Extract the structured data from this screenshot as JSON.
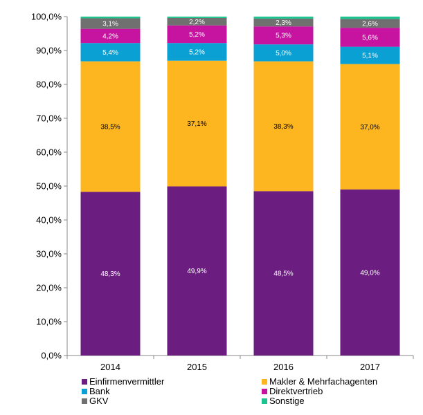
{
  "chart_data": {
    "type": "bar",
    "stacked": true,
    "categories": [
      "2014",
      "2015",
      "2016",
      "2017"
    ],
    "ylim": [
      0,
      100
    ],
    "yticks": [
      "0,0%",
      "10,0%",
      "20,0%",
      "30,0%",
      "40,0%",
      "50,0%",
      "60,0%",
      "70,0%",
      "80,0%",
      "90,0%",
      "100,0%"
    ],
    "legend_position": "bottom",
    "series": [
      {
        "name": "Einfirmenvermittler",
        "color": "#6b1e80",
        "label_color": "#ffffff",
        "values": [
          48.3,
          49.9,
          48.5,
          49.0
        ],
        "labels": [
          "48,3%",
          "49,9%",
          "48,5%",
          "49,0%"
        ]
      },
      {
        "name": "Makler & Mehrfachagenten",
        "color": "#fdb520",
        "label_color": "#000000",
        "values": [
          38.5,
          37.1,
          38.3,
          37.0
        ],
        "labels": [
          "38,5%",
          "37,1%",
          "38,3%",
          "37,0%"
        ]
      },
      {
        "name": "Bank",
        "color": "#0aa0d4",
        "label_color": "#ffffff",
        "values": [
          5.4,
          5.2,
          5.0,
          5.1
        ],
        "labels": [
          "5,4%",
          "5,2%",
          "5,0%",
          "5,1%"
        ]
      },
      {
        "name": "Direktvertrieb",
        "color": "#c613a0",
        "label_color": "#ffffff",
        "values": [
          4.2,
          5.2,
          5.3,
          5.6
        ],
        "labels": [
          "4,2%",
          "5,2%",
          "5,3%",
          "5,6%"
        ]
      },
      {
        "name": "GKV",
        "color": "#707070",
        "label_color": "#ffffff",
        "values": [
          3.1,
          2.2,
          2.3,
          2.6
        ],
        "labels": [
          "3,1%",
          "2,2%",
          "2,3%",
          "2,6%"
        ]
      },
      {
        "name": "Sonstige",
        "color": "#1ec48e",
        "label_color": "#000000",
        "values": [
          0.5,
          0.4,
          0.6,
          0.7
        ],
        "labels": [
          "",
          "",
          "",
          ""
        ]
      }
    ]
  }
}
